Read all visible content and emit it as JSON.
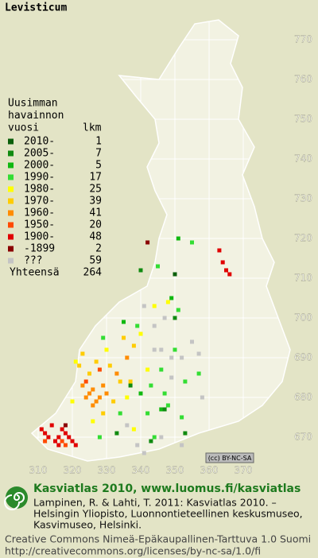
{
  "title": "Levisticum",
  "legend": {
    "heading": [
      "Uusimman",
      "havainnon",
      "vuosi"
    ],
    "count_heading": "lkm",
    "rows": [
      {
        "label": "2010-",
        "count": 1,
        "color": "#0b5f0b"
      },
      {
        "label": "2005-",
        "count": 7,
        "color": "#108a10"
      },
      {
        "label": "2000-",
        "count": 5,
        "color": "#10b810"
      },
      {
        "label": "1990-",
        "count": 17,
        "color": "#33dd33"
      },
      {
        "label": "1980-",
        "count": 25,
        "color": "#ffff00"
      },
      {
        "label": "1970-",
        "count": 39,
        "color": "#ffcc00"
      },
      {
        "label": "1960-",
        "count": 41,
        "color": "#ff8c00"
      },
      {
        "label": "1950-",
        "count": 20,
        "color": "#ff4a00"
      },
      {
        "label": "1900-",
        "count": 48,
        "color": "#e00000"
      },
      {
        "label": "-1899",
        "count": 2,
        "color": "#8a0000"
      },
      {
        "label": "???",
        "count": 59,
        "color": "#c4c4c4"
      }
    ],
    "total_label": "Yhteensä",
    "total": 264
  },
  "grid": {
    "x_labels": [
      310,
      320,
      330,
      340,
      350,
      360,
      370
    ],
    "y_labels": [
      770,
      760,
      750,
      740,
      730,
      720,
      710,
      700,
      690,
      680,
      670
    ]
  },
  "squares": [
    [
      311,
      672,
      8
    ],
    [
      312,
      671,
      8
    ],
    [
      313,
      670,
      8
    ],
    [
      315,
      669,
      8
    ],
    [
      316,
      670,
      8
    ],
    [
      317,
      672,
      8
    ],
    [
      318,
      671,
      8
    ],
    [
      319,
      670,
      8
    ],
    [
      314,
      673,
      8
    ],
    [
      320,
      669,
      8
    ],
    [
      316,
      668,
      8
    ],
    [
      363,
      717,
      8
    ],
    [
      364,
      714,
      8
    ],
    [
      365,
      712,
      8
    ],
    [
      366,
      711,
      8
    ],
    [
      321,
      668,
      8
    ],
    [
      312,
      669,
      7
    ],
    [
      318,
      668,
      7
    ],
    [
      317,
      669,
      7
    ],
    [
      324,
      684,
      7
    ],
    [
      328,
      687,
      7
    ],
    [
      324,
      680,
      6
    ],
    [
      325,
      681,
      6
    ],
    [
      326,
      682,
      6
    ],
    [
      327,
      679,
      6
    ],
    [
      328,
      680,
      6
    ],
    [
      329,
      683,
      6
    ],
    [
      330,
      681,
      6
    ],
    [
      326,
      678,
      6
    ],
    [
      333,
      686,
      6
    ],
    [
      336,
      690,
      6
    ],
    [
      323,
      683,
      6
    ],
    [
      325,
      686,
      5
    ],
    [
      327,
      689,
      5
    ],
    [
      331,
      688,
      5
    ],
    [
      334,
      684,
      5
    ],
    [
      332,
      679,
      5
    ],
    [
      322,
      688,
      5
    ],
    [
      338,
      693,
      5
    ],
    [
      337,
      684,
      5
    ],
    [
      329,
      676,
      5
    ],
    [
      335,
      695,
      5
    ],
    [
      323,
      691,
      5
    ],
    [
      321,
      689,
      4
    ],
    [
      330,
      692,
      4
    ],
    [
      340,
      696,
      4
    ],
    [
      344,
      703,
      4
    ],
    [
      348,
      704,
      4
    ],
    [
      336,
      680,
      4
    ],
    [
      338,
      672,
      4
    ],
    [
      326,
      674,
      4
    ],
    [
      342,
      687,
      4
    ],
    [
      320,
      679,
      4
    ],
    [
      343,
      683,
      3
    ],
    [
      346,
      687,
      3
    ],
    [
      348,
      678,
      3
    ],
    [
      352,
      675,
      3
    ],
    [
      345,
      713,
      3
    ],
    [
      355,
      719,
      3
    ],
    [
      344,
      670,
      3
    ],
    [
      350,
      692,
      3
    ],
    [
      339,
      698,
      3
    ],
    [
      334,
      676,
      3
    ],
    [
      328,
      670,
      3
    ],
    [
      347,
      681,
      3
    ],
    [
      353,
      684,
      3
    ],
    [
      357,
      686,
      3
    ],
    [
      342,
      676,
      3
    ],
    [
      351,
      702,
      3
    ],
    [
      329,
      695,
      3
    ],
    [
      351,
      720,
      2
    ],
    [
      349,
      705,
      2
    ],
    [
      335,
      699,
      2
    ],
    [
      346,
      677,
      2
    ],
    [
      340,
      681,
      2
    ],
    [
      347,
      677,
      1
    ],
    [
      340,
      712,
      1
    ],
    [
      343,
      669,
      1
    ],
    [
      337,
      683,
      1
    ],
    [
      353,
      671,
      1
    ],
    [
      333,
      671,
      1
    ],
    [
      350,
      700,
      1
    ],
    [
      350,
      711,
      0
    ],
    [
      342,
      719,
      9
    ],
    [
      318,
      673,
      9
    ],
    [
      341,
      703,
      10
    ],
    [
      344,
      698,
      10
    ],
    [
      349,
      690,
      10
    ],
    [
      352,
      690,
      10
    ],
    [
      355,
      694,
      10
    ],
    [
      357,
      691,
      10
    ],
    [
      346,
      692,
      10
    ],
    [
      336,
      673,
      10
    ],
    [
      339,
      668,
      10
    ],
    [
      341,
      666,
      10
    ],
    [
      346,
      670,
      10
    ],
    [
      352,
      668,
      10
    ],
    [
      358,
      680,
      10
    ],
    [
      349,
      685,
      10
    ],
    [
      347,
      700,
      10
    ],
    [
      344,
      692,
      10
    ]
  ],
  "license_badge": "(cc) BY-NC-SA",
  "footer": {
    "headline": "Kasviatlas 2010, www.luomus.fi/kasviatlas",
    "citation": [
      "Lampinen, R. & Lahti, T. 2011: Kasviatlas 2010. –",
      "Helsingin Yliopisto, Luonnontieteellinen keskusmuseo,",
      "Kasvimuseo, Helsinki."
    ],
    "license": [
      "Creative Commons Nimeä-Epäkaupallinen-Tarttuva 1.0 Suomi",
      "http://creativecommons.org/licenses/by-nc-sa/1.0/fi"
    ]
  }
}
